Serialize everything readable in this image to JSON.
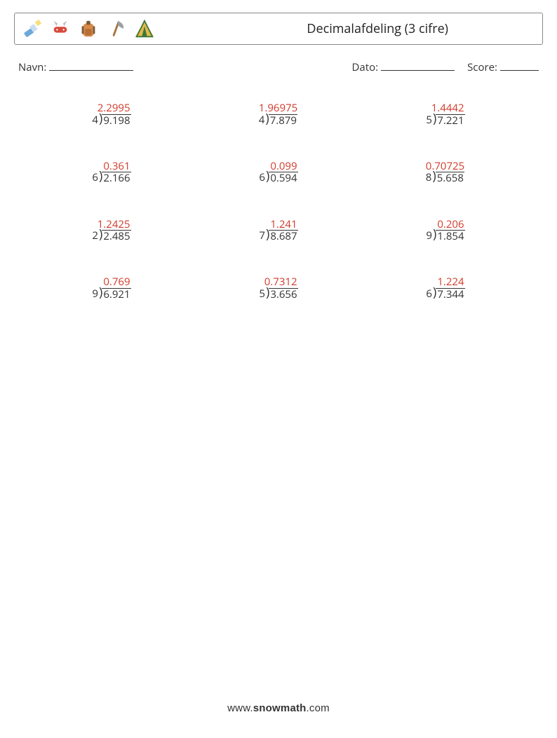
{
  "header": {
    "title": "Decimalafdeling (3 cifre)",
    "icons": [
      "flashlight-icon",
      "swiss-knife-icon",
      "backpack-icon",
      "axe-icon",
      "tent-icon"
    ]
  },
  "meta": {
    "name_label": "Navn:",
    "date_label": "Dato:",
    "score_label": "Score:"
  },
  "colors": {
    "answer": "#d23a2a",
    "text": "#333333",
    "border": "#888888",
    "background": "#ffffff"
  },
  "fontsizes": {
    "title": 18,
    "meta": 15,
    "problem": 15,
    "footer": 15
  },
  "problems": [
    [
      {
        "divisor": "4",
        "dividend": "9.198",
        "quotient": "2.2995"
      },
      {
        "divisor": "4",
        "dividend": "7.879",
        "quotient": "1.96975"
      },
      {
        "divisor": "5",
        "dividend": "7.221",
        "quotient": "1.4442"
      }
    ],
    [
      {
        "divisor": "6",
        "dividend": "2.166",
        "quotient": "0.361"
      },
      {
        "divisor": "6",
        "dividend": "0.594",
        "quotient": "0.099"
      },
      {
        "divisor": "8",
        "dividend": "5.658",
        "quotient": "0.70725"
      }
    ],
    [
      {
        "divisor": "2",
        "dividend": "2.485",
        "quotient": "1.2425"
      },
      {
        "divisor": "7",
        "dividend": "8.687",
        "quotient": "1.241"
      },
      {
        "divisor": "9",
        "dividend": "1.854",
        "quotient": "0.206"
      }
    ],
    [
      {
        "divisor": "9",
        "dividend": "6.921",
        "quotient": "0.769"
      },
      {
        "divisor": "5",
        "dividend": "3.656",
        "quotient": "0.7312"
      },
      {
        "divisor": "6",
        "dividend": "7.344",
        "quotient": "1.224"
      }
    ]
  ],
  "footer": {
    "prefix": "www.",
    "brand": "snowmath",
    "suffix": ".com"
  }
}
